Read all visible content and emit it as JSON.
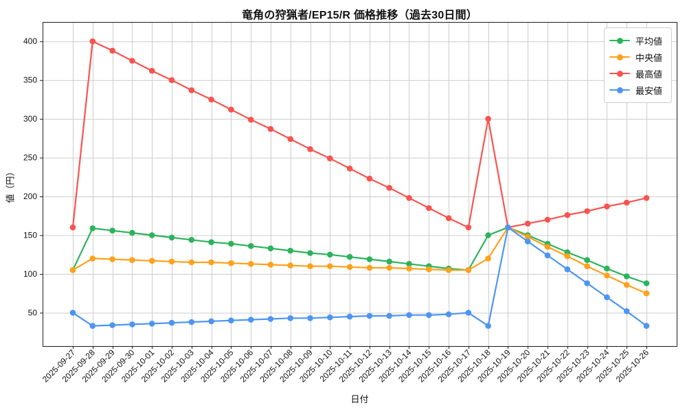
{
  "chart_data": {
    "type": "line",
    "title": "竜角の狩猟者/EP15/R 価格推移（過去30日間）",
    "xlabel": "日付",
    "ylabel": "値（円）",
    "grid": true,
    "legend_position": "upper right",
    "ylim": [
      7,
      425
    ],
    "yticks": [
      50,
      100,
      150,
      200,
      250,
      300,
      350,
      400
    ],
    "categories": [
      "2025-09-27",
      "2025-09-28",
      "2025-09-29",
      "2025-09-30",
      "2025-10-01",
      "2025-10-02",
      "2025-10-03",
      "2025-10-04",
      "2025-10-05",
      "2025-10-06",
      "2025-10-07",
      "2025-10-08",
      "2025-10-09",
      "2025-10-10",
      "2025-10-11",
      "2025-10-12",
      "2025-10-13",
      "2025-10-14",
      "2025-10-15",
      "2025-10-16",
      "2025-10-17",
      "2025-10-18",
      "2025-10-19",
      "2025-10-20",
      "2025-10-21",
      "2025-10-22",
      "2025-10-23",
      "2025-10-24",
      "2025-10-25",
      "2025-10-26"
    ],
    "series": [
      {
        "name": "平均値",
        "color": "#2cb35b",
        "values": [
          105,
          159,
          156,
          153,
          150,
          147,
          144,
          141,
          139,
          136,
          133,
          130,
          127,
          125,
          122,
          119,
          116,
          113,
          110,
          107,
          105,
          150,
          160,
          150,
          139,
          128,
          118,
          107,
          97,
          88
        ]
      },
      {
        "name": "中央値",
        "color": "#ffa11b",
        "values": [
          105,
          120,
          119,
          118,
          117,
          116,
          115,
          115,
          114,
          113,
          112,
          111,
          110,
          110,
          109,
          108,
          108,
          107,
          106,
          105,
          105,
          120,
          160,
          148,
          135,
          123,
          110,
          98,
          86,
          75
        ]
      },
      {
        "name": "最高値",
        "color": "#f8534f",
        "values": [
          160,
          400,
          388,
          375,
          362,
          350,
          337,
          325,
          312,
          299,
          287,
          274,
          261,
          249,
          236,
          223,
          211,
          198,
          185,
          172,
          160,
          300,
          160,
          165,
          170,
          176,
          181,
          187,
          192,
          198
        ]
      },
      {
        "name": "最安値",
        "color": "#4d95f2",
        "values": [
          50,
          33,
          34,
          35,
          36,
          37,
          38,
          39,
          40,
          41,
          42,
          43,
          43,
          44,
          45,
          46,
          46,
          47,
          47,
          48,
          50,
          33,
          160,
          142,
          124,
          106,
          88,
          70,
          52,
          33
        ]
      }
    ]
  }
}
